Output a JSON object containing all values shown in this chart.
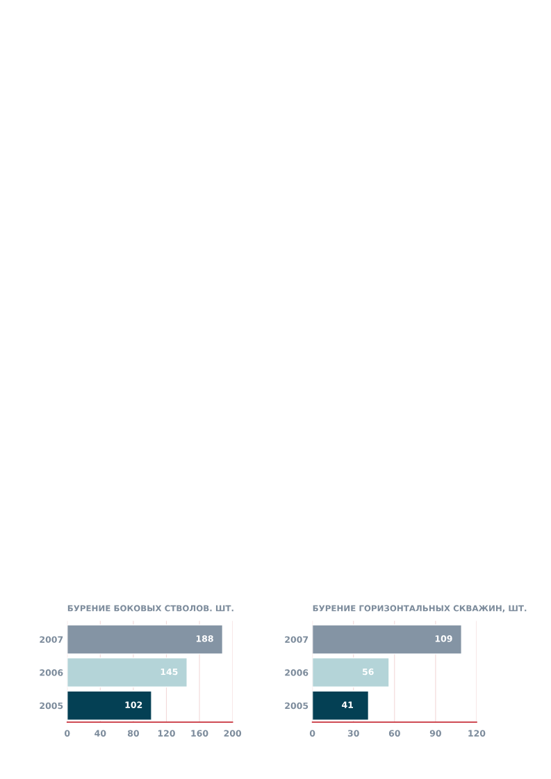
{
  "chart_data": [
    {
      "type": "bar",
      "orientation": "horizontal",
      "title": "БУРЕНИЕ БОКОВЫХ СТВОЛОВ. ШТ.",
      "categories": [
        "2007",
        "2006",
        "2005"
      ],
      "values": [
        188,
        145,
        102
      ],
      "colors": [
        "#8494a4",
        "#b4d4d8",
        "#044054"
      ],
      "xlim": [
        0,
        200
      ],
      "xticks": [
        0,
        40,
        80,
        120,
        160,
        200
      ],
      "grid": "x",
      "data_labels": true
    },
    {
      "type": "bar",
      "orientation": "horizontal",
      "title": "БУРЕНИЕ ГОРИЗОНТАЛЬНЫХ СКВАЖИН, ШТ.",
      "categories": [
        "2007",
        "2006",
        "2005"
      ],
      "values": [
        109,
        56,
        41
      ],
      "colors": [
        "#8494a4",
        "#b4d4d8",
        "#044054"
      ],
      "xlim": [
        0,
        120
      ],
      "xticks": [
        0,
        30,
        60,
        90,
        120
      ],
      "grid": "x",
      "data_labels": true
    }
  ]
}
